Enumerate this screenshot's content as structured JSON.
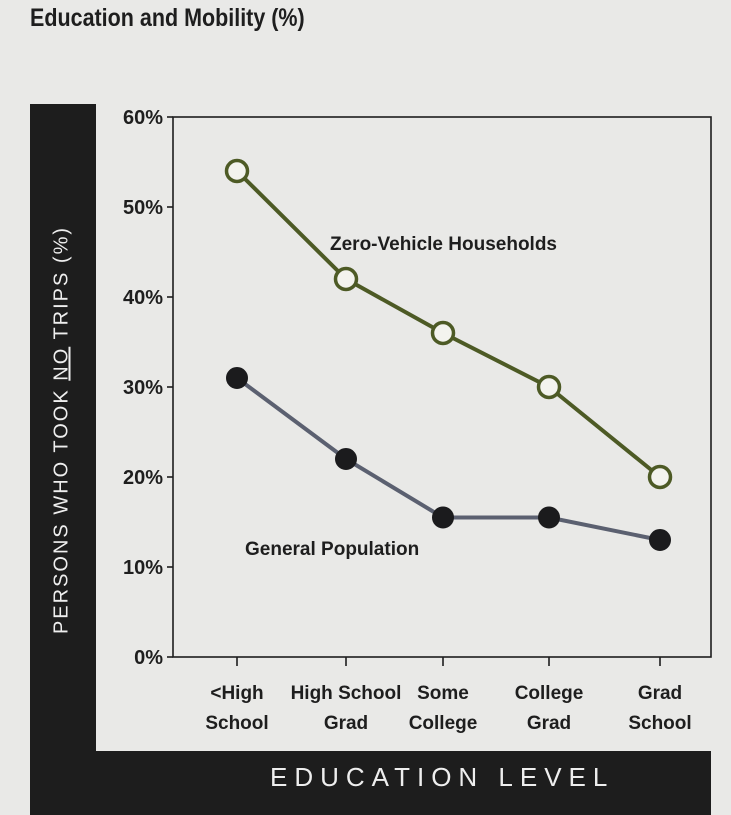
{
  "title": "Education and Mobility (%)",
  "chart_data": {
    "type": "line",
    "title": "Education and Mobility (%)",
    "xlabel": "EDUCATION LEVEL",
    "ylabel_parts": [
      "PERSONS WHO TOOK ",
      "NO",
      " TRIPS (%)"
    ],
    "categories": [
      [
        "<High",
        "School"
      ],
      [
        "High School",
        "Grad"
      ],
      [
        "Some",
        "College"
      ],
      [
        "College",
        "Grad"
      ],
      [
        "Grad",
        "School"
      ]
    ],
    "ylim": [
      0,
      60
    ],
    "yticks": [
      "0%",
      "10%",
      "20%",
      "30%",
      "40%",
      "50%",
      "60%"
    ],
    "grid": false,
    "series": [
      {
        "name": "Zero-Vehicle Households",
        "values": [
          54,
          42,
          36,
          30,
          20
        ],
        "line_color": "#4d5a25",
        "marker": "open"
      },
      {
        "name": "General Population",
        "values": [
          31,
          22,
          15.5,
          15.5,
          13
        ],
        "line_color": "#5b6070",
        "marker": "filled"
      }
    ]
  }
}
